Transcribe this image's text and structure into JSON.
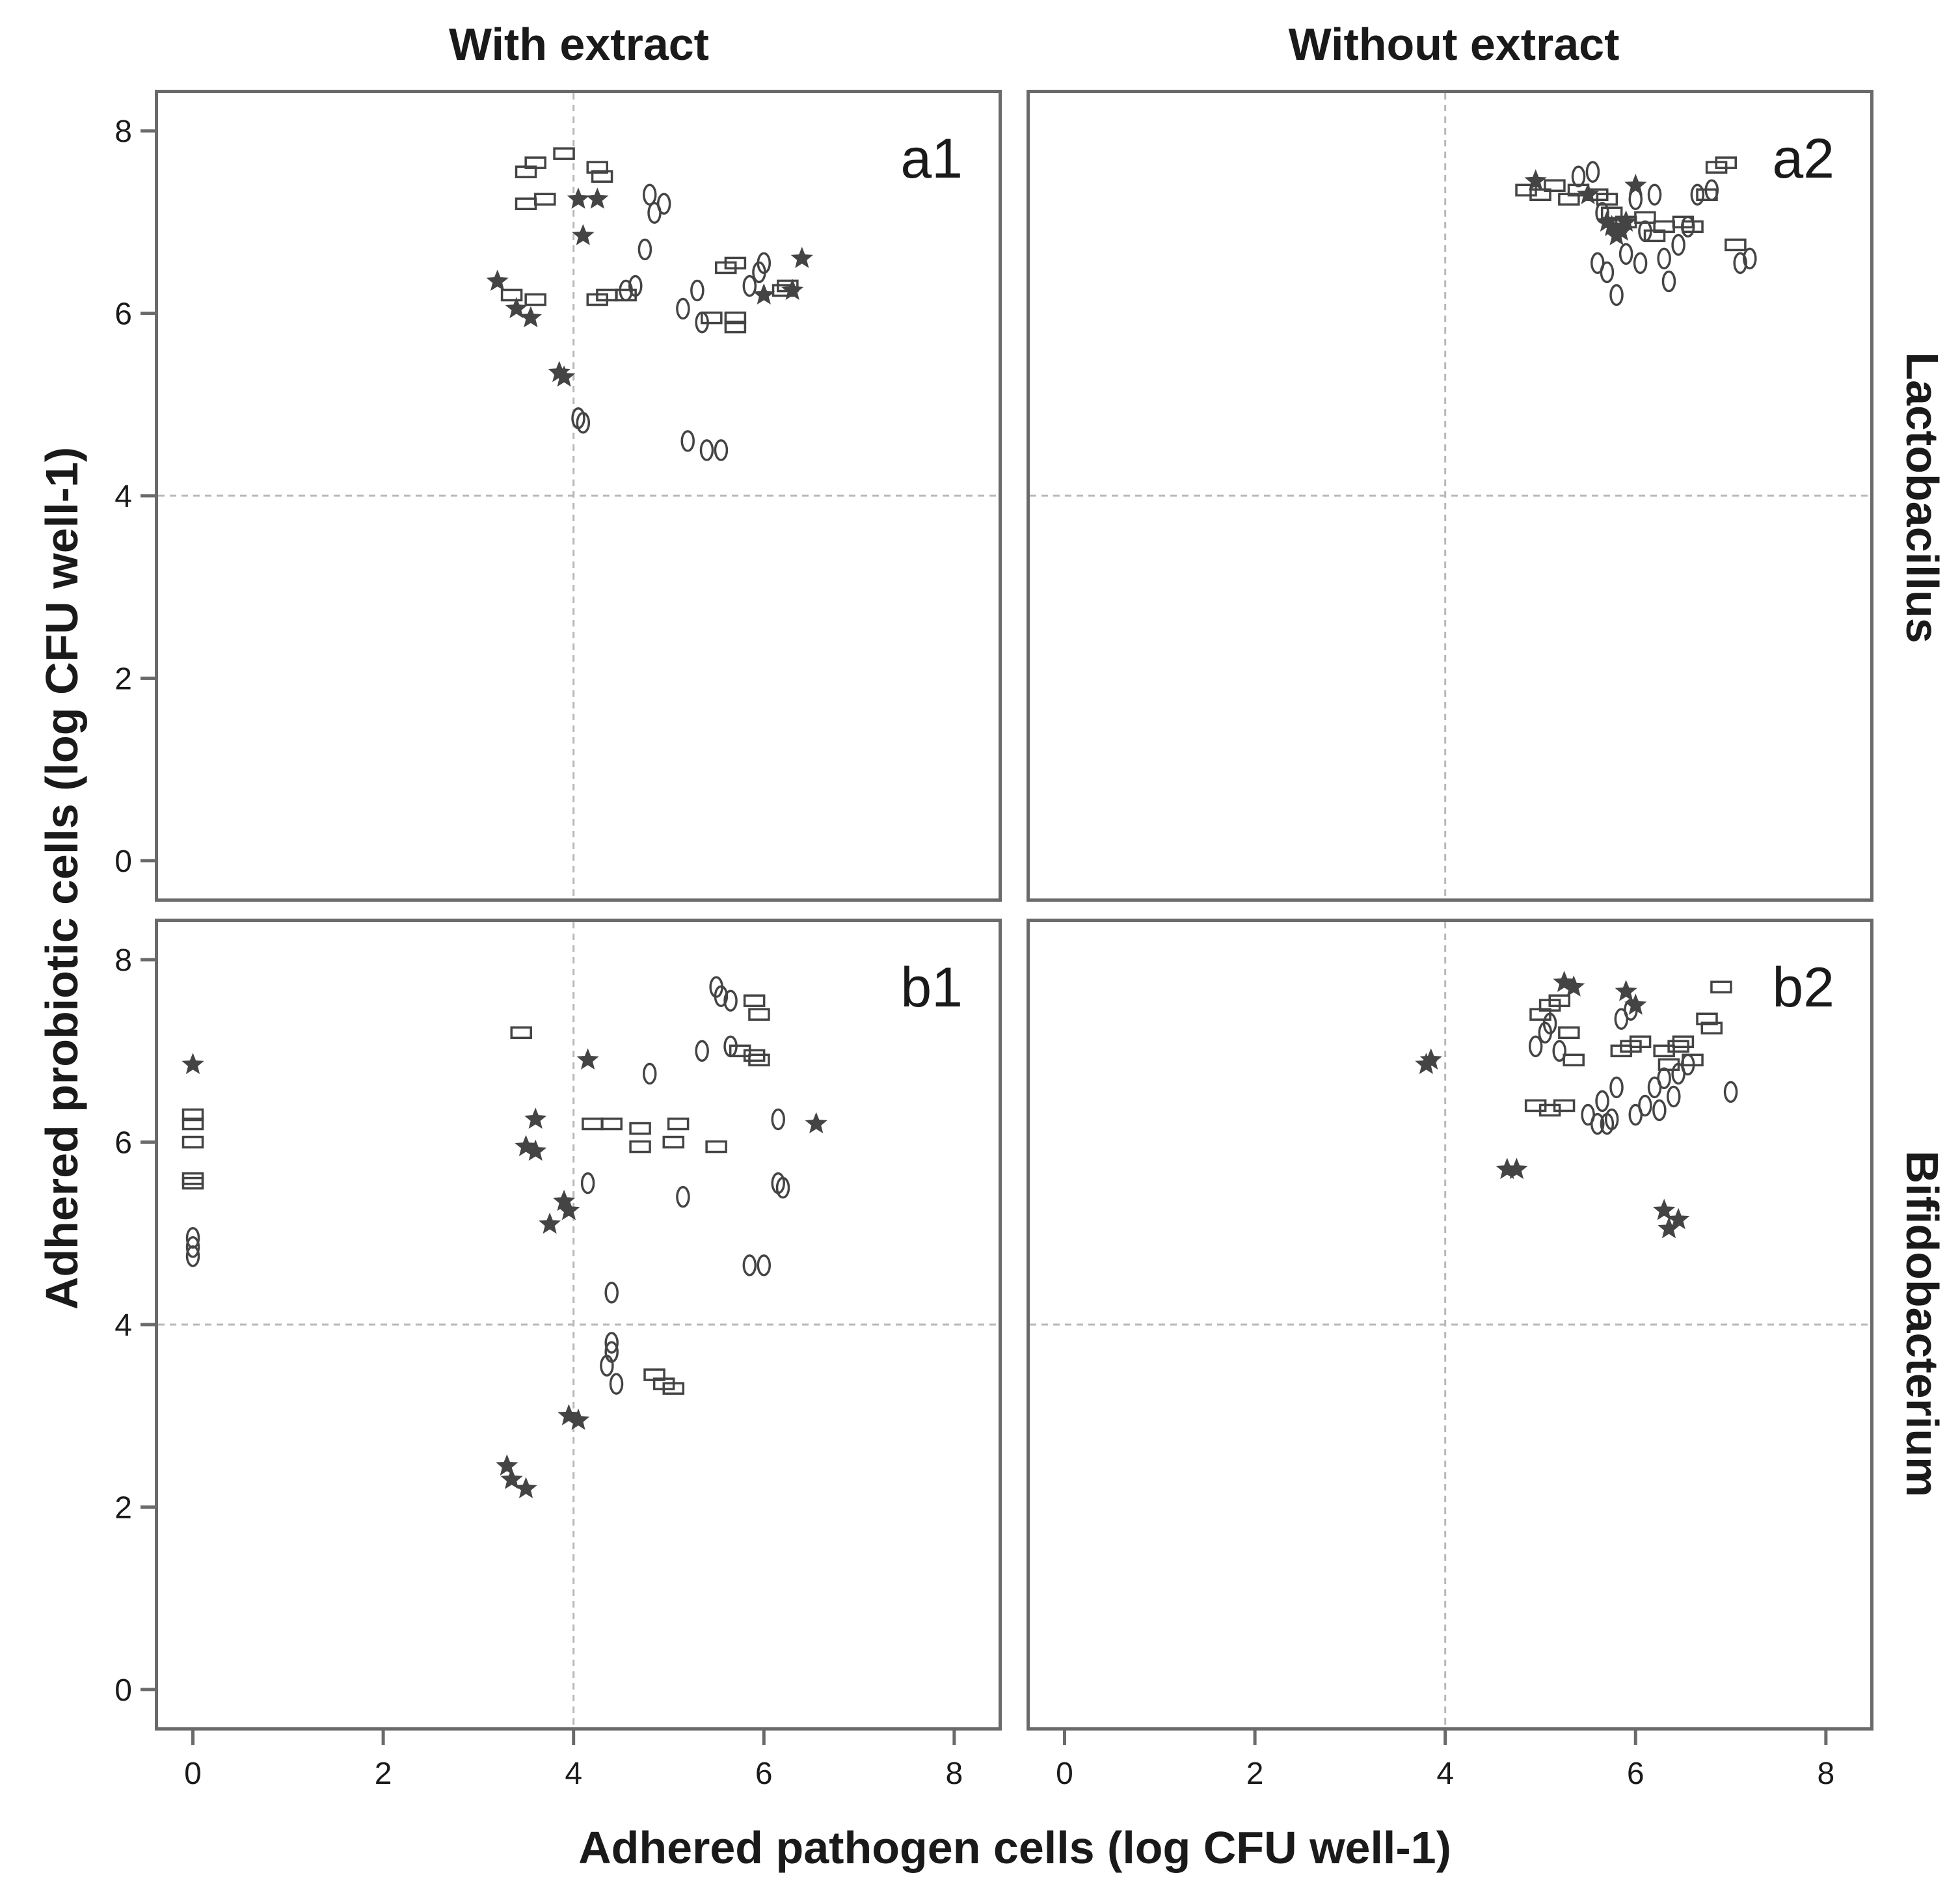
{
  "figure": {
    "col_titles": [
      "With extract",
      "Without extract"
    ],
    "row_titles": [
      "Lactobacillus",
      "Bifidobacterium"
    ],
    "xlabel": "Adhered pathogen cells (log CFU well-1)",
    "ylabel": "Adhered probiotic cells (log CFU well-1)"
  },
  "colors": {
    "marker": "#444444",
    "frame": "#6a6a6a",
    "refline": "#b8b8b8",
    "text": "#1a1a1a"
  },
  "chart_data": [
    {
      "type": "scatter",
      "panel": "a1",
      "label": "a1",
      "column": "With extract",
      "row": "Lactobacillus",
      "xlim": [
        -0.4,
        8.5
      ],
      "ylim": [
        -0.45,
        8.45
      ],
      "xticks": [
        "0",
        "2",
        "4",
        "6",
        "8"
      ],
      "yticks": [
        "0",
        "2",
        "4",
        "6",
        "8"
      ],
      "show_x_ticks": false,
      "show_y_ticks": true,
      "reference_lines": {
        "x": 4,
        "y": 4
      },
      "series": [
        {
          "marker": "rect",
          "points": [
            [
              3.5,
              7.55
            ],
            [
              3.6,
              7.65
            ],
            [
              3.5,
              7.2
            ],
            [
              3.7,
              7.25
            ],
            [
              3.9,
              7.75
            ],
            [
              4.25,
              7.6
            ],
            [
              4.3,
              7.5
            ],
            [
              3.35,
              6.2
            ],
            [
              3.6,
              6.15
            ],
            [
              4.25,
              6.15
            ],
            [
              4.35,
              6.2
            ],
            [
              4.55,
              6.2
            ],
            [
              5.6,
              6.5
            ],
            [
              5.7,
              6.55
            ],
            [
              5.45,
              5.95
            ],
            [
              5.7,
              5.95
            ],
            [
              5.7,
              5.85
            ],
            [
              6.2,
              6.25
            ],
            [
              6.25,
              6.3
            ]
          ]
        },
        {
          "marker": "ellipse",
          "points": [
            [
              4.05,
              4.85
            ],
            [
              4.1,
              4.8
            ],
            [
              4.55,
              6.25
            ],
            [
              4.65,
              6.3
            ],
            [
              4.75,
              6.7
            ],
            [
              4.8,
              7.3
            ],
            [
              4.85,
              7.1
            ],
            [
              4.95,
              7.2
            ],
            [
              5.15,
              6.05
            ],
            [
              5.3,
              6.25
            ],
            [
              5.35,
              5.9
            ],
            [
              5.2,
              4.6
            ],
            [
              5.4,
              4.5
            ],
            [
              5.55,
              4.5
            ],
            [
              5.85,
              6.3
            ],
            [
              5.95,
              6.45
            ],
            [
              6.0,
              6.55
            ]
          ]
        },
        {
          "marker": "star",
          "points": [
            [
              3.2,
              6.35
            ],
            [
              3.4,
              6.05
            ],
            [
              3.55,
              5.95
            ],
            [
              3.85,
              5.35
            ],
            [
              3.9,
              5.3
            ],
            [
              4.1,
              6.85
            ],
            [
              4.05,
              7.25
            ],
            [
              4.25,
              7.25
            ],
            [
              6.0,
              6.2
            ],
            [
              6.3,
              6.25
            ],
            [
              6.4,
              6.6
            ]
          ]
        }
      ]
    },
    {
      "type": "scatter",
      "panel": "a2",
      "label": "a2",
      "column": "Without extract",
      "row": "Lactobacillus",
      "xlim": [
        -0.4,
        8.5
      ],
      "ylim": [
        -0.45,
        8.45
      ],
      "xticks": [
        "0",
        "2",
        "4",
        "6",
        "8"
      ],
      "yticks": [
        "0",
        "2",
        "4",
        "6",
        "8"
      ],
      "show_x_ticks": false,
      "show_y_ticks": false,
      "reference_lines": {
        "x": 4,
        "y": 4
      },
      "series": [
        {
          "marker": "rect",
          "points": [
            [
              4.85,
              7.35
            ],
            [
              5.0,
              7.3
            ],
            [
              5.15,
              7.4
            ],
            [
              5.3,
              7.25
            ],
            [
              5.4,
              7.35
            ],
            [
              5.6,
              7.3
            ],
            [
              5.75,
              7.1
            ],
            [
              5.9,
              7.0
            ],
            [
              6.1,
              7.05
            ],
            [
              6.3,
              6.95
            ],
            [
              6.5,
              7.0
            ],
            [
              6.6,
              6.95
            ],
            [
              6.75,
              7.3
            ],
            [
              6.85,
              7.6
            ],
            [
              6.95,
              7.65
            ],
            [
              7.05,
              6.75
            ],
            [
              5.7,
              7.25
            ],
            [
              6.2,
              6.85
            ]
          ]
        },
        {
          "marker": "ellipse",
          "points": [
            [
              5.4,
              7.5
            ],
            [
              5.55,
              7.55
            ],
            [
              5.65,
              7.1
            ],
            [
              5.6,
              6.55
            ],
            [
              5.7,
              6.45
            ],
            [
              5.8,
              6.2
            ],
            [
              5.9,
              6.65
            ],
            [
              6.0,
              7.25
            ],
            [
              6.05,
              6.55
            ],
            [
              6.1,
              6.9
            ],
            [
              6.2,
              7.3
            ],
            [
              6.3,
              6.6
            ],
            [
              6.35,
              6.35
            ],
            [
              6.45,
              6.75
            ],
            [
              6.55,
              6.95
            ],
            [
              6.65,
              7.3
            ],
            [
              6.8,
              7.35
            ],
            [
              7.1,
              6.55
            ],
            [
              7.2,
              6.6
            ]
          ]
        },
        {
          "marker": "star",
          "points": [
            [
              4.95,
              7.45
            ],
            [
              5.5,
              7.3
            ],
            [
              5.7,
              7.0
            ],
            [
              5.8,
              6.85
            ],
            [
              5.85,
              6.9
            ],
            [
              6.0,
              7.4
            ],
            [
              5.75,
              6.95
            ],
            [
              5.9,
              7.0
            ]
          ]
        }
      ]
    },
    {
      "type": "scatter",
      "panel": "b1",
      "label": "b1",
      "column": "With extract",
      "row": "Bifidobacterium",
      "xlim": [
        -0.4,
        8.5
      ],
      "ylim": [
        -0.45,
        8.45
      ],
      "xticks": [
        "0",
        "2",
        "4",
        "6",
        "8"
      ],
      "yticks": [
        "0",
        "2",
        "4",
        "6",
        "8"
      ],
      "show_x_ticks": true,
      "show_y_ticks": true,
      "reference_lines": {
        "x": 4,
        "y": 4
      },
      "series": [
        {
          "marker": "rect",
          "points": [
            [
              0.0,
              6.3
            ],
            [
              0.0,
              6.2
            ],
            [
              0.0,
              6.0
            ],
            [
              0.0,
              5.6
            ],
            [
              0.0,
              5.55
            ],
            [
              3.45,
              7.2
            ],
            [
              4.2,
              6.2
            ],
            [
              4.4,
              6.2
            ],
            [
              4.7,
              6.15
            ],
            [
              4.7,
              5.95
            ],
            [
              5.05,
              6.0
            ],
            [
              5.1,
              6.2
            ],
            [
              5.5,
              5.95
            ],
            [
              5.9,
              7.55
            ],
            [
              5.95,
              7.4
            ],
            [
              5.75,
              7.0
            ],
            [
              5.9,
              6.95
            ],
            [
              5.95,
              6.9
            ],
            [
              4.85,
              3.45
            ],
            [
              4.95,
              3.35
            ],
            [
              5.05,
              3.3
            ]
          ]
        },
        {
          "marker": "ellipse",
          "points": [
            [
              0.0,
              4.95
            ],
            [
              0.0,
              4.85
            ],
            [
              0.0,
              4.75
            ],
            [
              4.15,
              5.55
            ],
            [
              4.35,
              3.55
            ],
            [
              4.4,
              3.7
            ],
            [
              4.4,
              3.8
            ],
            [
              4.4,
              4.35
            ],
            [
              4.45,
              3.35
            ],
            [
              4.8,
              6.75
            ],
            [
              5.15,
              5.4
            ],
            [
              5.35,
              7.0
            ],
            [
              5.5,
              7.7
            ],
            [
              5.55,
              7.6
            ],
            [
              5.65,
              7.55
            ],
            [
              5.65,
              7.05
            ],
            [
              6.15,
              6.25
            ],
            [
              6.15,
              5.55
            ],
            [
              6.2,
              5.5
            ],
            [
              5.85,
              4.65
            ],
            [
              6.0,
              4.65
            ]
          ]
        },
        {
          "marker": "star",
          "points": [
            [
              0.0,
              6.85
            ],
            [
              3.3,
              2.45
            ],
            [
              3.35,
              2.3
            ],
            [
              3.5,
              2.2
            ],
            [
              3.5,
              5.95
            ],
            [
              3.6,
              5.9
            ],
            [
              3.6,
              6.25
            ],
            [
              3.75,
              5.1
            ],
            [
              3.9,
              5.35
            ],
            [
              3.95,
              5.25
            ],
            [
              3.95,
              3.0
            ],
            [
              4.05,
              2.95
            ],
            [
              4.15,
              6.9
            ],
            [
              6.55,
              6.2
            ]
          ]
        }
      ]
    },
    {
      "type": "scatter",
      "panel": "b2",
      "label": "b2",
      "column": "Without extract",
      "row": "Bifidobacterium",
      "xlim": [
        -0.4,
        8.5
      ],
      "ylim": [
        -0.45,
        8.45
      ],
      "xticks": [
        "0",
        "2",
        "4",
        "6",
        "8"
      ],
      "yticks": [
        "0",
        "2",
        "4",
        "6",
        "8"
      ],
      "show_x_ticks": true,
      "show_y_ticks": false,
      "reference_lines": {
        "x": 4,
        "y": 4
      },
      "series": [
        {
          "marker": "rect",
          "points": [
            [
              5.0,
              7.4
            ],
            [
              5.1,
              7.5
            ],
            [
              5.2,
              7.55
            ],
            [
              5.3,
              7.2
            ],
            [
              5.35,
              6.9
            ],
            [
              4.95,
              6.4
            ],
            [
              5.1,
              6.35
            ],
            [
              5.25,
              6.4
            ],
            [
              5.85,
              7.0
            ],
            [
              5.95,
              7.05
            ],
            [
              6.05,
              7.1
            ],
            [
              6.3,
              7.0
            ],
            [
              6.35,
              6.85
            ],
            [
              6.5,
              7.1
            ],
            [
              6.6,
              6.9
            ],
            [
              6.75,
              7.35
            ],
            [
              6.8,
              7.25
            ],
            [
              6.9,
              7.7
            ],
            [
              6.45,
              7.05
            ]
          ]
        },
        {
          "marker": "ellipse",
          "points": [
            [
              4.95,
              7.05
            ],
            [
              5.05,
              7.2
            ],
            [
              5.1,
              7.3
            ],
            [
              5.2,
              7.0
            ],
            [
              5.5,
              6.3
            ],
            [
              5.6,
              6.2
            ],
            [
              5.65,
              6.45
            ],
            [
              5.75,
              6.25
            ],
            [
              5.8,
              6.6
            ],
            [
              5.85,
              7.35
            ],
            [
              5.95,
              7.45
            ],
            [
              6.0,
              6.3
            ],
            [
              6.1,
              6.4
            ],
            [
              6.2,
              6.6
            ],
            [
              6.25,
              6.35
            ],
            [
              6.3,
              6.7
            ],
            [
              6.4,
              6.5
            ],
            [
              6.45,
              6.75
            ],
            [
              6.55,
              6.85
            ],
            [
              7.0,
              6.55
            ],
            [
              5.7,
              6.2
            ]
          ]
        },
        {
          "marker": "star",
          "points": [
            [
              3.8,
              6.85
            ],
            [
              3.85,
              6.9
            ],
            [
              4.65,
              5.7
            ],
            [
              4.75,
              5.7
            ],
            [
              5.25,
              7.75
            ],
            [
              5.35,
              7.7
            ],
            [
              5.9,
              7.65
            ],
            [
              6.0,
              7.5
            ],
            [
              6.3,
              5.25
            ],
            [
              6.35,
              5.05
            ],
            [
              6.45,
              5.15
            ]
          ]
        }
      ]
    }
  ]
}
